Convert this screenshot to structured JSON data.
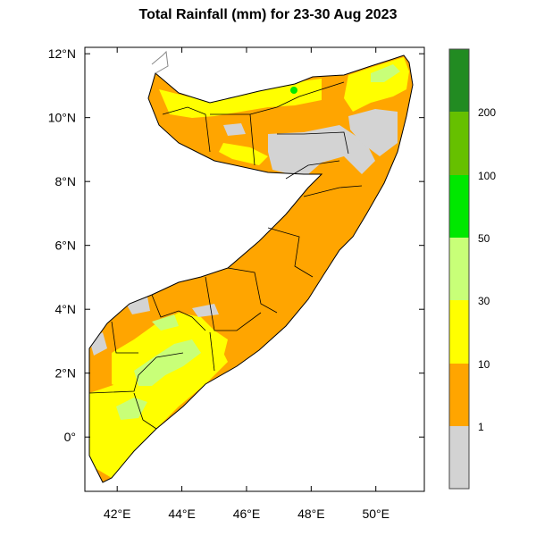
{
  "title": "Total Rainfall (mm) for 23-30 Aug 2023",
  "colors": {
    "lt1": "#d3d3d3",
    "r1_10": "#ffa500",
    "r10_30": "#ffff00",
    "r30_50": "#c8ff78",
    "r50_100": "#96ff96",
    "r100_200": "#00e800",
    "r200_plus": "#66c000",
    "top": "#228b22",
    "border": "#000000",
    "outer_border": "#888888"
  },
  "chart_data": {
    "type": "map",
    "title": "Total Rainfall (mm) for 23-30 Aug 2023",
    "lon_range": [
      41,
      51.5
    ],
    "lat_range": [
      -1.7,
      12.2
    ],
    "x_ticks": [
      "42°E",
      "44°E",
      "46°E",
      "48°E",
      "50°E"
    ],
    "y_ticks": [
      "12°N",
      "10°N",
      "8°N",
      "6°N",
      "4°N",
      "2°N",
      "0°"
    ],
    "x_tick_values": [
      42,
      44,
      46,
      48,
      50
    ],
    "y_tick_values": [
      12,
      10,
      8,
      6,
      4,
      2,
      0
    ],
    "colorbar": {
      "labels": [
        "1",
        "10",
        "30",
        "50",
        "100",
        "200"
      ],
      "bins": [
        "<1",
        "1-10",
        "10-30",
        "30-50",
        "50-100",
        "100-200",
        ">200"
      ]
    }
  }
}
